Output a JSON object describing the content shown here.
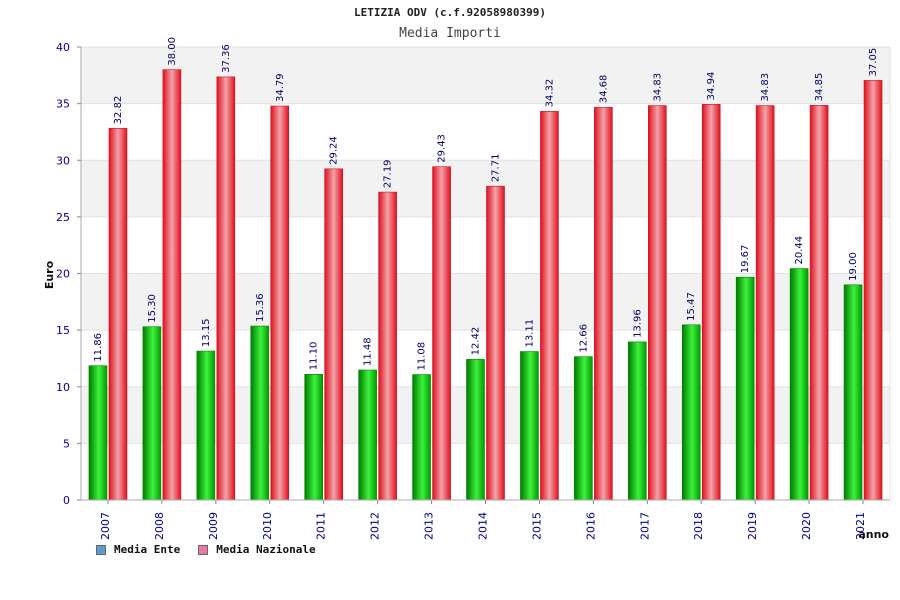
{
  "chart_data": {
    "type": "bar",
    "title": "LETIZIA ODV (c.f.92058980399)",
    "subtitle": "Media Importi",
    "xlabel": "anno",
    "ylabel": "Euro",
    "ylim": [
      0,
      40
    ],
    "yticks": [
      "0",
      "5",
      "10",
      "15",
      "20",
      "25",
      "30",
      "35",
      "40"
    ],
    "grid": true,
    "legend_position": "bottom-left",
    "categories": [
      "2007",
      "2008",
      "2009",
      "2010",
      "2011",
      "2012",
      "2013",
      "2014",
      "2015",
      "2016",
      "2017",
      "2018",
      "2019",
      "2020",
      "2021"
    ],
    "series": [
      {
        "name": "Media Ente",
        "color": "#00c000",
        "legend_color": "#5b9bd5",
        "values": [
          11.86,
          15.3,
          13.15,
          15.36,
          11.1,
          11.48,
          11.08,
          12.42,
          13.11,
          12.66,
          13.96,
          15.47,
          19.67,
          20.44,
          19.0
        ],
        "labels": [
          "11.86",
          "15.30",
          "13.15",
          "15.36",
          "11.10",
          "11.48",
          "11.08",
          "12.42",
          "13.11",
          "12.66",
          "13.96",
          "15.47",
          "19.67",
          "20.44",
          "19.00"
        ]
      },
      {
        "name": "Media Nazionale",
        "color": "#e81c2c",
        "legend_color": "#e879a9",
        "values": [
          32.82,
          38.0,
          37.36,
          34.79,
          29.24,
          27.19,
          29.43,
          27.71,
          34.32,
          34.68,
          34.83,
          34.94,
          34.83,
          34.85,
          37.05
        ],
        "labels": [
          "32.82",
          "38.00",
          "37.36",
          "34.79",
          "29.24",
          "27.19",
          "29.43",
          "27.71",
          "34.32",
          "34.68",
          "34.83",
          "34.94",
          "34.83",
          "34.85",
          "37.05"
        ]
      }
    ]
  }
}
